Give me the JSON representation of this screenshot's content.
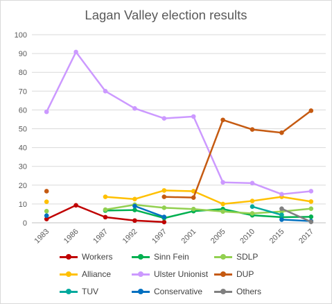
{
  "chart_data": {
    "type": "line",
    "title": "Lagan Valley election results",
    "categories": [
      "1983",
      "1986",
      "1987",
      "1992",
      "1997",
      "2001",
      "2005",
      "2010",
      "2015",
      "2017"
    ],
    "ylim": [
      0,
      100
    ],
    "yticks": [
      "0",
      "10",
      "20",
      "30",
      "40",
      "50",
      "60",
      "70",
      "80",
      "90",
      "100"
    ],
    "grid": true,
    "legend_position": "bottom",
    "series": [
      {
        "name": "Workers",
        "color": "#c00000",
        "values": [
          2,
          9.3,
          3,
          1.2,
          0.4,
          null,
          null,
          null,
          null,
          null
        ]
      },
      {
        "name": "Sinn Fein",
        "color": "#00b050",
        "values": [
          null,
          null,
          6.5,
          6.8,
          2.5,
          6.2,
          7.3,
          4,
          3,
          3.2
        ]
      },
      {
        "name": "SDLP",
        "color": "#92d050",
        "values": [
          6.2,
          null,
          7,
          9.6,
          8,
          7.3,
          6,
          5,
          6,
          7.5
        ]
      },
      {
        "name": "Alliance",
        "color": "#ffc000",
        "values": [
          11.2,
          null,
          13.8,
          12.6,
          17.2,
          16.8,
          10,
          11.6,
          13.8,
          11.3
        ]
      },
      {
        "name": "Ulster Unionist",
        "color": "#cc99ff",
        "values": [
          59,
          90.8,
          70,
          60.8,
          55.5,
          56.5,
          21.5,
          21.1,
          15.2,
          16.8
        ]
      },
      {
        "name": "DUP",
        "color": "#c55a11",
        "values": [
          16.8,
          null,
          null,
          null,
          13.8,
          13.4,
          54.7,
          49.6,
          47.9,
          59.6
        ]
      },
      {
        "name": "TUV",
        "color": "#00a99d",
        "values": [
          null,
          null,
          null,
          null,
          null,
          null,
          null,
          8.6,
          4.2,
          null
        ]
      },
      {
        "name": "Conservative",
        "color": "#0070c0",
        "values": [
          3.8,
          null,
          null,
          8.9,
          3.1,
          null,
          null,
          null,
          1.7,
          0.9
        ]
      },
      {
        "name": "Others",
        "color": "#808080",
        "values": [
          null,
          null,
          null,
          null,
          null,
          null,
          null,
          null,
          7.5,
          0.5
        ]
      }
    ]
  }
}
